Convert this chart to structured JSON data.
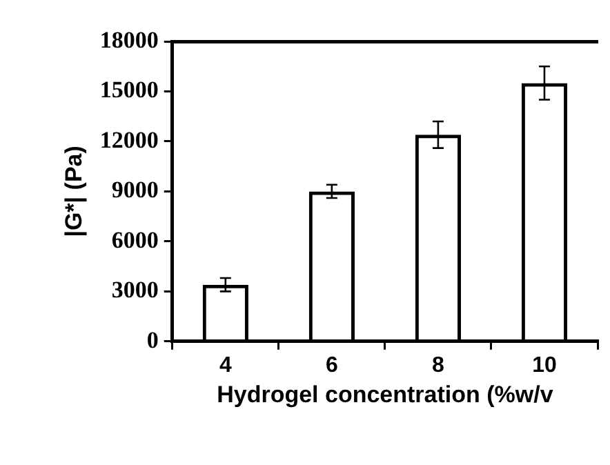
{
  "chart_data": {
    "type": "bar",
    "xlabel": "Hydrogel concentration (%w/v",
    "ylabel": "|G*| (Pa)",
    "categories": [
      "4",
      "6",
      "8",
      "10"
    ],
    "values": [
      3400,
      9000,
      12400,
      15500
    ],
    "errors": [
      400,
      400,
      800,
      1000
    ],
    "color": "#000000",
    "ylim": [
      0,
      18000
    ],
    "yticks": [
      0,
      3000,
      6000,
      9000,
      12000,
      15000,
      18000
    ],
    "grid": false,
    "legend": false
  }
}
